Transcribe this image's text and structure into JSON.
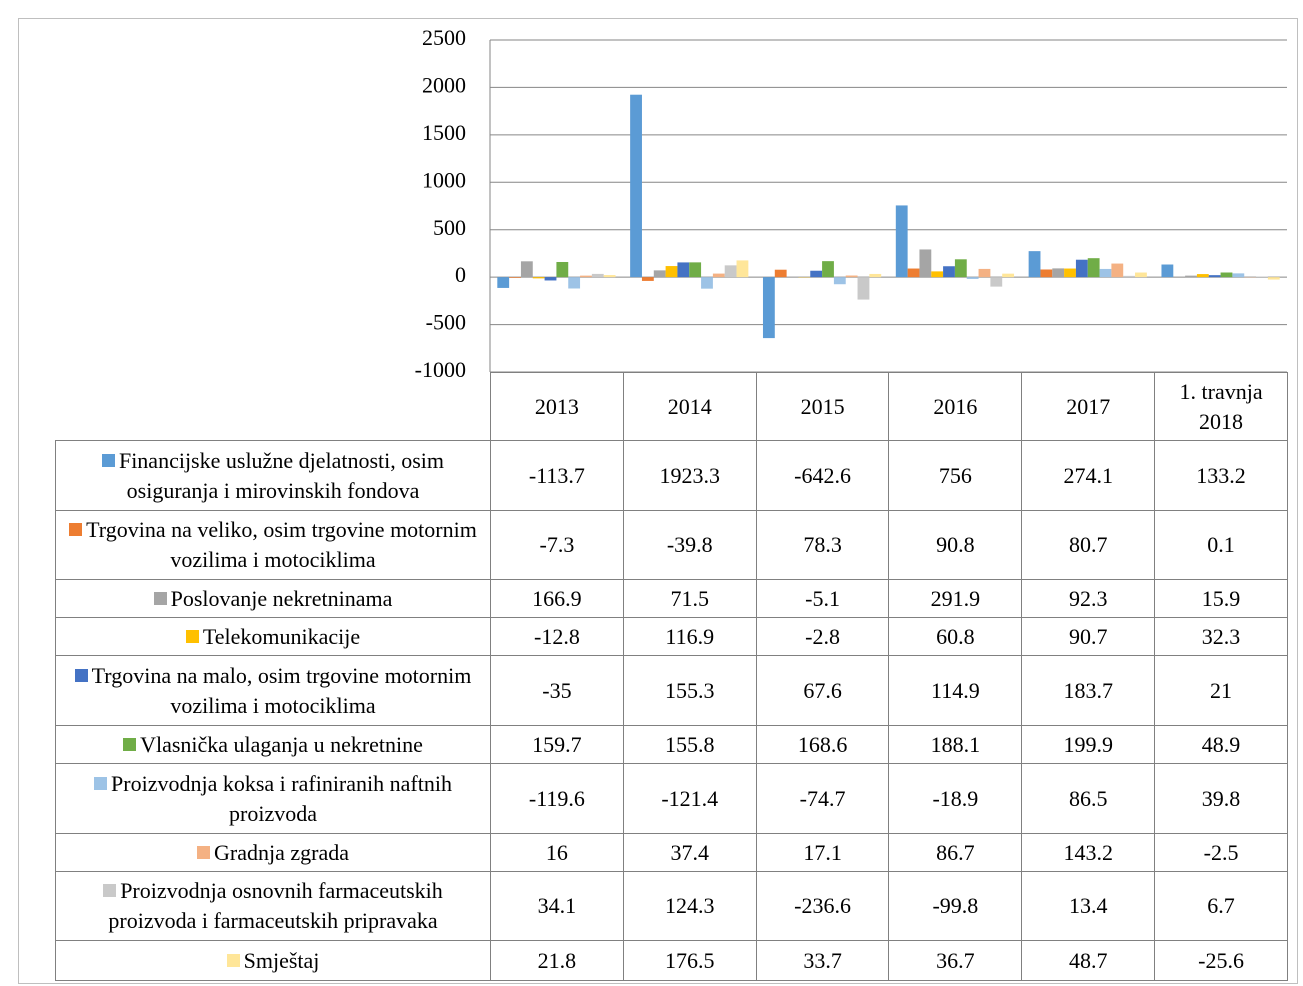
{
  "chart_data": {
    "type": "bar",
    "categories": [
      "2013",
      "2014",
      "2015",
      "2016",
      "2017",
      "1. travnja 2018"
    ],
    "ylim": [
      -1000,
      2500
    ],
    "yticks": [
      -1000,
      -500,
      0,
      500,
      1000,
      1500,
      2000,
      2500
    ],
    "grid": true,
    "series": [
      {
        "name": "Financijske uslužne djelatnosti, osim osiguranja i mirovinskih fondova",
        "color": "#5b9bd5",
        "values": [
          -113.7,
          1923.3,
          -642.6,
          756,
          274.1,
          133.2
        ]
      },
      {
        "name": "Trgovina na veliko, osim trgovine motornim vozilima i motociklima",
        "color": "#ed7d31",
        "values": [
          -7.3,
          -39.8,
          78.3,
          90.8,
          80.7,
          0.1
        ]
      },
      {
        "name": "Poslovanje nekretninama",
        "color": "#a5a5a5",
        "values": [
          166.9,
          71.5,
          -5.1,
          291.9,
          92.3,
          15.9
        ]
      },
      {
        "name": "Telekomunikacije",
        "color": "#ffc000",
        "values": [
          -12.8,
          116.9,
          -2.8,
          60.8,
          90.7,
          32.3
        ]
      },
      {
        "name": "Trgovina na malo, osim trgovine motornim vozilima i motociklima",
        "color": "#4472c4",
        "values": [
          -35,
          155.3,
          67.6,
          114.9,
          183.7,
          21
        ]
      },
      {
        "name": "Vlasnička ulaganja u nekretnine",
        "color": "#70ad47",
        "values": [
          159.7,
          155.8,
          168.6,
          188.1,
          199.9,
          48.9
        ]
      },
      {
        "name": "Proizvodnja koksa i rafiniranih naftnih proizvoda",
        "color": "#9dc3e6",
        "values": [
          -119.6,
          -121.4,
          -74.7,
          -18.9,
          86.5,
          39.8
        ]
      },
      {
        "name": "Gradnja zgrada",
        "color": "#f4b183",
        "values": [
          16,
          37.4,
          17.1,
          86.7,
          143.2,
          -2.5
        ]
      },
      {
        "name": "Proizvodnja osnovnih farmaceutskih proizvoda i farmaceutskih pripravaka",
        "color": "#c9c9c9",
        "values": [
          34.1,
          124.3,
          -236.6,
          -99.8,
          13.4,
          6.7
        ]
      },
      {
        "name": "Smještaj",
        "color": "#ffe699",
        "values": [
          21.8,
          176.5,
          33.7,
          36.7,
          48.7,
          -25.6
        ]
      }
    ]
  }
}
